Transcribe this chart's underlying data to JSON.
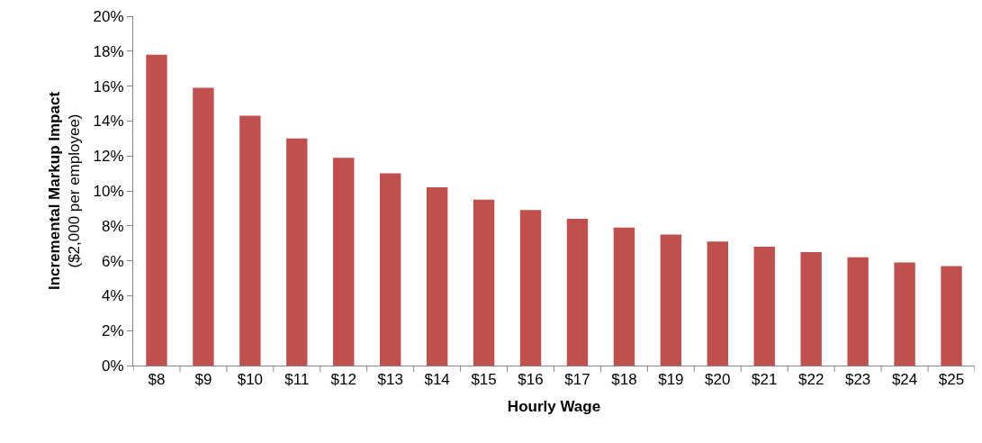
{
  "chart_data": {
    "type": "bar",
    "xlabel": "Hourly Wage",
    "ylabel": "Incremental Markup Impact\n($2,000 per employee)",
    "categories": [
      "$8",
      "$9",
      "$10",
      "$11",
      "$12",
      "$13",
      "$14",
      "$15",
      "$16",
      "$17",
      "$18",
      "$19",
      "$20",
      "$21",
      "$22",
      "$23",
      "$24",
      "$25"
    ],
    "values": [
      17.8,
      15.9,
      14.3,
      13.0,
      11.9,
      11.0,
      10.2,
      9.5,
      8.9,
      8.4,
      7.9,
      7.5,
      7.1,
      6.8,
      6.5,
      6.2,
      5.9,
      5.7
    ],
    "color": "#c0504d",
    "ylim": [
      0,
      20
    ],
    "yticks": [
      {
        "value": 0,
        "label": "0%"
      },
      {
        "value": 2,
        "label": "2%"
      },
      {
        "value": 4,
        "label": "4%"
      },
      {
        "value": 6,
        "label": "6%"
      },
      {
        "value": 8,
        "label": "8%"
      },
      {
        "value": 10,
        "label": "10%"
      },
      {
        "value": 12,
        "label": "12%"
      },
      {
        "value": 14,
        "label": "14%"
      },
      {
        "value": 16,
        "label": "16%"
      },
      {
        "value": 18,
        "label": "18%"
      },
      {
        "value": 20,
        "label": "20%"
      }
    ]
  }
}
